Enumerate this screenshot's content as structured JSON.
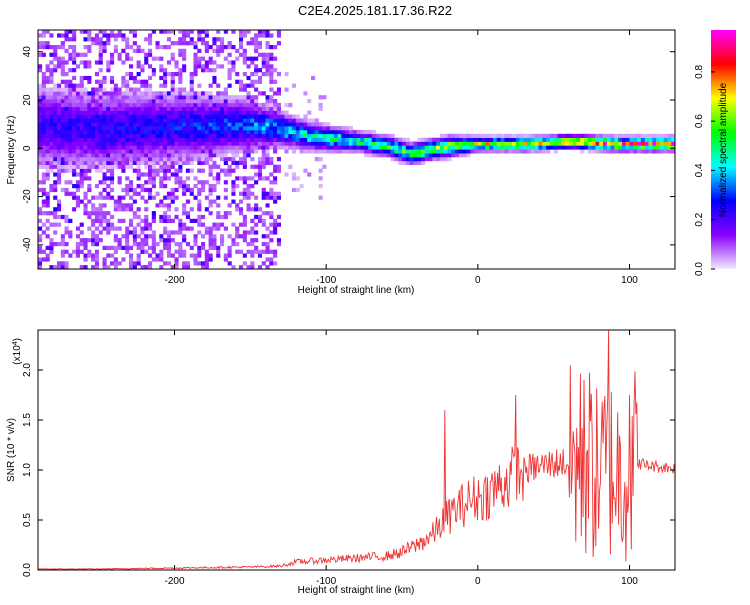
{
  "page": {
    "title": "C2E4.2025.181.17.36.R22"
  },
  "chart_data": [
    {
      "type": "heatmap",
      "xlabel": "Height of straight line (km)",
      "ylabel": "Frequency (Hz)",
      "xlim": [
        -290,
        130
      ],
      "ylim": [
        -50,
        49
      ],
      "xticks": [
        -200,
        -100,
        0,
        100
      ],
      "yticks": [
        -40,
        -20,
        0,
        20,
        40
      ],
      "colorbar": {
        "label": "Normalized spectral amplitude",
        "range": [
          0.0,
          0.97
        ],
        "ticks": [
          0.0,
          0.2,
          0.4,
          0.6,
          0.8
        ],
        "tick_labels": [
          "0.0",
          "0.2",
          "0.4",
          "0.6",
          "0.8"
        ],
        "colors": [
          "#f0e8ff",
          "#8a00ff",
          "#0000ff",
          "#00ffff",
          "#00ff00",
          "#ffff00",
          "#ff0000",
          "#ff00ff"
        ]
      },
      "ridge": [
        {
          "x": -290,
          "center": 8,
          "width": 12,
          "amp": 0.22
        },
        {
          "x": -250,
          "center": 7,
          "width": 11,
          "amp": 0.24
        },
        {
          "x": -200,
          "center": 8,
          "width": 10,
          "amp": 0.26
        },
        {
          "x": -160,
          "center": 9,
          "width": 8,
          "amp": 0.3
        },
        {
          "x": -140,
          "center": 8,
          "width": 6,
          "amp": 0.35
        },
        {
          "x": -130,
          "center": 7,
          "width": 5,
          "amp": 0.38
        },
        {
          "x": -110,
          "center": 4,
          "width": 4,
          "amp": 0.42
        },
        {
          "x": -80,
          "center": 2,
          "width": 3,
          "amp": 0.45
        },
        {
          "x": -60,
          "center": 0,
          "width": 3,
          "amp": 0.5
        },
        {
          "x": -45,
          "center": -3,
          "width": 3,
          "amp": 0.52
        },
        {
          "x": -30,
          "center": -1,
          "width": 3,
          "amp": 0.55
        },
        {
          "x": -20,
          "center": 0,
          "width": 3,
          "amp": 0.6
        },
        {
          "x": 0,
          "center": 1,
          "width": 2,
          "amp": 0.68
        },
        {
          "x": 30,
          "center": 1,
          "width": 2,
          "amp": 0.7
        },
        {
          "x": 60,
          "center": 2,
          "width": 2,
          "amp": 0.75
        },
        {
          "x": 90,
          "center": 1,
          "width": 2,
          "amp": 0.8
        },
        {
          "x": 130,
          "center": 1,
          "width": 2,
          "amp": 0.82
        }
      ]
    },
    {
      "type": "line",
      "xlabel": "Height of straight line (km)",
      "ylabel": "SNR (10 * v/v)",
      "multiplier_label": "(x10",
      "multiplier_exp": "4",
      "multiplier_close": ")",
      "xlim": [
        -290,
        130
      ],
      "ylim": [
        0,
        2.4
      ],
      "xticks": [
        -200,
        -100,
        0,
        100
      ],
      "yticks": [
        0.0,
        0.5,
        1.0,
        1.5,
        2.0
      ],
      "ytick_labels": [
        "0.0",
        "0.5",
        "1.0",
        "1.5",
        "2.0"
      ],
      "color": "#ee3333",
      "series": [
        {
          "x": [
            -290,
            -250,
            -200,
            -150,
            -130,
            -120,
            -100,
            -80,
            -60,
            -50,
            -40,
            -30,
            -22,
            -15,
            -5,
            5,
            15,
            25,
            35,
            45,
            55,
            65,
            72,
            78,
            82,
            86,
            90,
            95,
            100,
            105,
            110,
            120,
            130
          ],
          "y": [
            0.01,
            0.01,
            0.02,
            0.03,
            0.04,
            0.08,
            0.1,
            0.12,
            0.14,
            0.18,
            0.25,
            0.35,
            0.5,
            0.6,
            0.7,
            0.75,
            0.85,
            0.95,
            1.02,
            1.05,
            1.08,
            1.05,
            1.1,
            0.95,
            1.0,
            1.05,
            1.0,
            0.95,
            1.05,
            1.08,
            1.05,
            1.03,
            1.02
          ]
        }
      ],
      "spikes": [
        {
          "x": -22,
          "y": 1.6
        },
        {
          "x": 25,
          "y": 1.75
        },
        {
          "x": 70,
          "y": 1.9
        },
        {
          "x": 86,
          "y": 2.4
        },
        {
          "x": 100,
          "y": 1.75
        }
      ]
    }
  ]
}
